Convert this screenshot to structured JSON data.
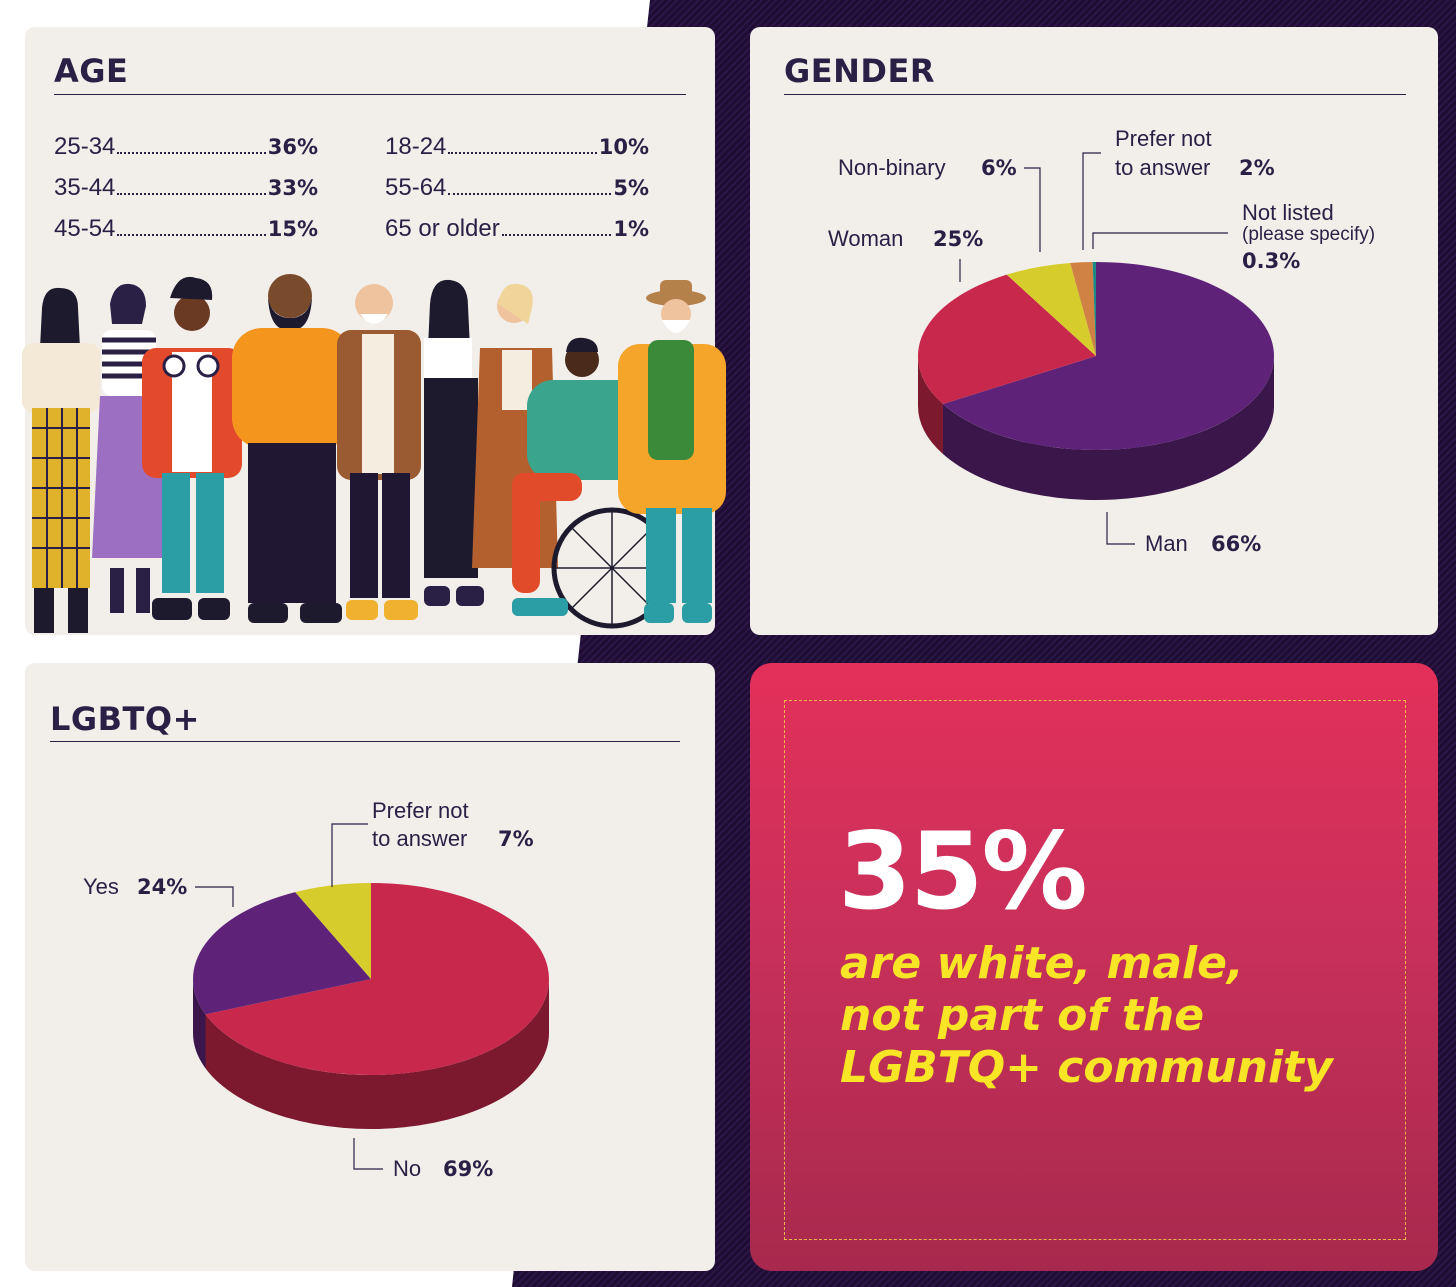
{
  "age": {
    "title": "AGE",
    "rows_left": [
      {
        "label": "25-34",
        "value": "36%"
      },
      {
        "label": "35-44",
        "value": "33%"
      },
      {
        "label": "45-54",
        "value": "15%"
      }
    ],
    "rows_right": [
      {
        "label": "18-24",
        "value": "10%"
      },
      {
        "label": "55-64",
        "value": "5%"
      },
      {
        "label": "65 or older",
        "value": "1%"
      }
    ]
  },
  "gender": {
    "title": "GENDER",
    "labels": {
      "nonbinary": "Non-binary",
      "nonbinary_val": "6%",
      "prefer_1": "Prefer not",
      "prefer_2": "to answer",
      "prefer_val": "2%",
      "notlisted_1": "Not listed",
      "notlisted_2": "(please specify)",
      "notlisted_val": "0.3%",
      "woman": "Woman",
      "woman_val": "25%",
      "man": "Man",
      "man_val": "66%"
    }
  },
  "lgbtq": {
    "title": "LGBTQ+",
    "labels": {
      "prefer_1": "Prefer not",
      "prefer_2": "to answer",
      "prefer_val": "7%",
      "yes": "Yes",
      "yes_val": "24%",
      "no": "No",
      "no_val": "69%"
    }
  },
  "callout": {
    "stat": "35%",
    "line1": "are white, male,",
    "line2": "not part of the",
    "line3": "LGBTQ+ community"
  },
  "colors": {
    "panel": "#f2eee9",
    "navy": "#2a1f45",
    "purple": "#5e2379",
    "crimson": "#c8284b",
    "yellow": "#d6cd2c",
    "orange": "#d08244",
    "teal": "#1a8a87",
    "callout_yellow": "#f7e526"
  },
  "chart_data": [
    {
      "type": "pie",
      "title": "GENDER",
      "categories": [
        "Man",
        "Woman",
        "Non-binary",
        "Prefer not to answer",
        "Not listed (please specify)"
      ],
      "values": [
        66,
        25,
        6,
        2,
        0.3
      ]
    },
    {
      "type": "pie",
      "title": "LGBTQ+",
      "categories": [
        "No",
        "Yes",
        "Prefer not to answer"
      ],
      "values": [
        69,
        24,
        7
      ]
    },
    {
      "type": "table",
      "title": "AGE",
      "categories": [
        "25-34",
        "35-44",
        "45-54",
        "18-24",
        "55-64",
        "65 or older"
      ],
      "values": [
        36,
        33,
        15,
        10,
        5,
        1
      ]
    }
  ]
}
